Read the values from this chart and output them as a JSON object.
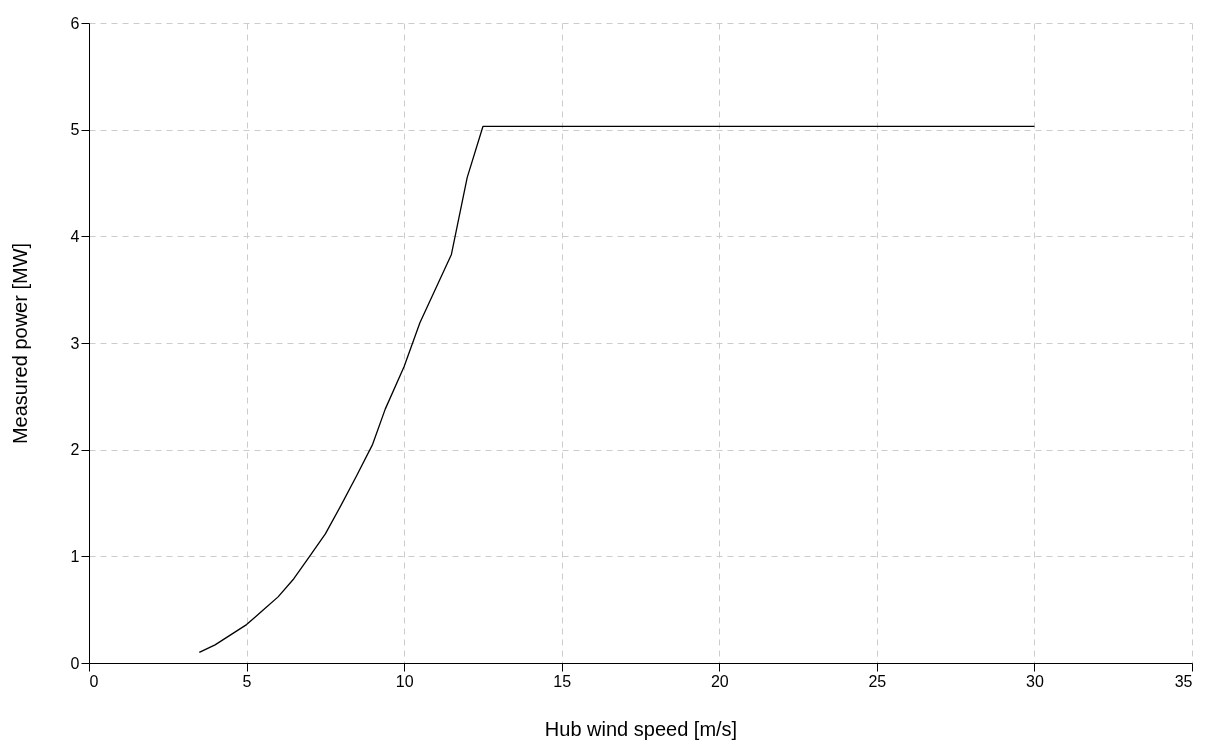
{
  "chart_data": {
    "type": "line",
    "xlabel": "Hub wind speed [m/s]",
    "ylabel": "Measured power  [MW]",
    "x": [
      3.5,
      4,
      5,
      5.5,
      6,
      6.5,
      7,
      7.5,
      8,
      8.5,
      9,
      9.4,
      10,
      10.5,
      11.5,
      12,
      12.5,
      30
    ],
    "series": [
      {
        "color": "#000000",
        "values": [
          0.1,
          0.17,
          0.36,
          0.49,
          0.62,
          0.79,
          1.0,
          1.21,
          1.48,
          1.76,
          2.05,
          2.38,
          2.78,
          3.19,
          3.83,
          4.55,
          5.03,
          5.03
        ]
      }
    ],
    "xlim": [
      0,
      35
    ],
    "xticks": [
      0,
      5,
      10,
      15,
      20,
      25,
      30,
      35
    ],
    "ylim": [
      0,
      6
    ],
    "yticks": [
      0,
      1,
      2,
      3,
      4,
      5,
      6
    ],
    "grid": true,
    "line_style": "solid",
    "marker": "none"
  }
}
